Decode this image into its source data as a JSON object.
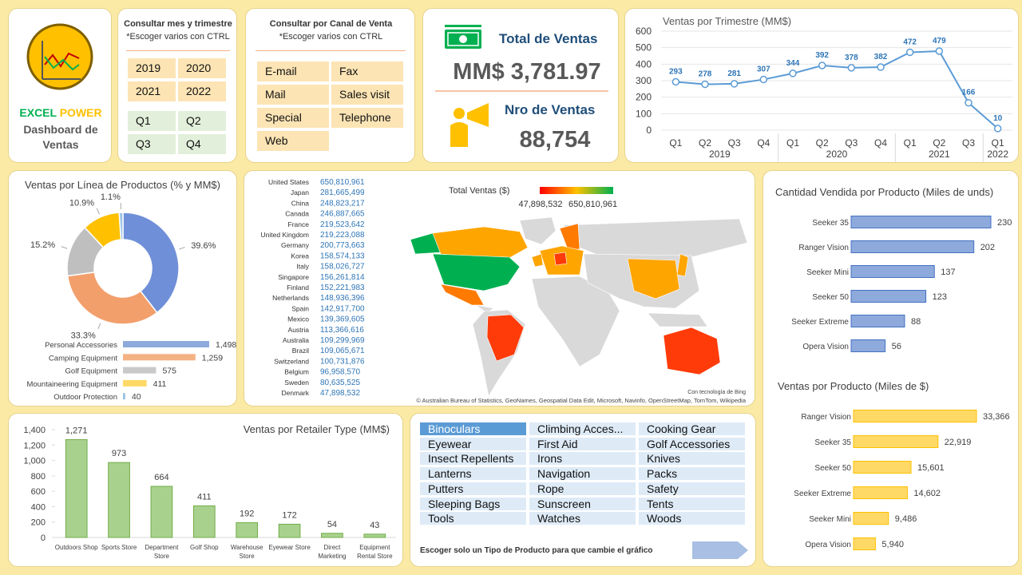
{
  "logo": {
    "brand_1": "EXCEL",
    "brand_2": "POWER",
    "title": "Dashboard de Ventas"
  },
  "period_slicer": {
    "title": "Consultar mes y trimestre",
    "subtitle": "*Escoger varios con CTRL",
    "years": [
      "2019",
      "2020",
      "2021",
      "2022"
    ],
    "quarters": [
      "Q1",
      "Q2",
      "Q3",
      "Q4"
    ]
  },
  "channel_slicer": {
    "title": "Consultar por Canal de Venta",
    "subtitle": "*Escoger varios con CTRL",
    "items": [
      "E-mail",
      "Fax",
      "Mail",
      "Sales visit",
      "Special",
      "Telephone",
      "Web"
    ]
  },
  "kpis": {
    "sales_label": "Total de Ventas",
    "sales_value": "MM$ 3,781.97",
    "count_label": "Nro de Ventas",
    "count_value": "88,754"
  },
  "map": {
    "title": "Total Ventas ($)",
    "legend_min": "47,898,532",
    "legend_max": "650,810,961",
    "credit": "Con tecnología de Bing",
    "attribution": "© Australian Bureau of Statistics, GeoNames, Geospatial Data Edit, Microsoft, Navinfo, OpenStreetMap, TomTom, Wikipedia",
    "rows": [
      [
        "United States",
        "650,810,961"
      ],
      [
        "Japan",
        "281,665,499"
      ],
      [
        "China",
        "248,823,217"
      ],
      [
        "Canada",
        "246,887,665"
      ],
      [
        "France",
        "219,523,642"
      ],
      [
        "United Kingdom",
        "219,223,088"
      ],
      [
        "Germany",
        "200,773,663"
      ],
      [
        "Korea",
        "158,574,133"
      ],
      [
        "Italy",
        "158,026,727"
      ],
      [
        "Singapore",
        "156,261,814"
      ],
      [
        "Finland",
        "152,221,983"
      ],
      [
        "Netherlands",
        "148,936,396"
      ],
      [
        "Spain",
        "142,917,700"
      ],
      [
        "Mexico",
        "139,369,605"
      ],
      [
        "Austria",
        "113,366,616"
      ],
      [
        "Australia",
        "109,299,969"
      ],
      [
        "Brazil",
        "109,065,671"
      ],
      [
        "Switzerland",
        "100,731,876"
      ],
      [
        "Belgium",
        "96,958,570"
      ],
      [
        "Sweden",
        "80,635,525"
      ],
      [
        "Denmark",
        "47,898,532"
      ]
    ]
  },
  "product_slicer": {
    "items": [
      "Binoculars",
      "Climbing Acces...",
      "Cooking Gear",
      "Eyewear",
      "First Aid",
      "Golf Accessories",
      "Insect Repellents",
      "Irons",
      "Knives",
      "Lanterns",
      "Navigation",
      "Packs",
      "Putters",
      "Rope",
      "Safety",
      "Sleeping Bags",
      "Sunscreen",
      "Tents",
      "Tools",
      "Watches",
      "Woods"
    ],
    "selected": 0,
    "note": "Escoger solo un Tipo de Producto para que cambie el gráfico"
  },
  "chart_data": [
    {
      "type": "line",
      "title": "Ventas por Trimestre (MM$)",
      "color": "#5b9bd5",
      "grid": true,
      "groups": [
        {
          "label": "2019",
          "categories": [
            "Q1",
            "Q2",
            "Q3",
            "Q4"
          ],
          "values": [
            293,
            278,
            281,
            307
          ]
        },
        {
          "label": "2020",
          "categories": [
            "Q1",
            "Q2",
            "Q3",
            "Q4"
          ],
          "values": [
            344,
            392,
            378,
            382
          ]
        },
        {
          "label": "2021",
          "categories": [
            "Q1",
            "Q2",
            "Q3"
          ],
          "values": [
            472,
            479,
            166
          ]
        },
        {
          "label": "2022",
          "categories": [
            "Q1"
          ],
          "values": [
            10
          ]
        }
      ],
      "ylim": [
        0,
        600
      ],
      "yticks": [
        0,
        100,
        200,
        300,
        400,
        500,
        600
      ]
    },
    {
      "type": "donut",
      "title": "Ventas por Línea de Productos (% y MM$)",
      "values": [
        39.6,
        33.3,
        15.2,
        10.9,
        1.1
      ],
      "value_labels": [
        "39.6%",
        "33.3%",
        "15.2%",
        "10.9%",
        "1.1%"
      ],
      "colors": [
        "#6f8fd8",
        "#f29f6c",
        "#bfbfbf",
        "#ffc000",
        "#9dc3e6"
      ]
    },
    {
      "type": "hbar",
      "categories": [
        "Personal Accessories",
        "Camping Equipment",
        "Golf Equipment",
        "Mountaineering Equipment",
        "Outdoor Protection"
      ],
      "values": [
        1498,
        1259,
        575,
        411,
        40
      ],
      "value_labels": [
        "1,498",
        "1,259",
        "575",
        "411",
        "40"
      ],
      "colors": [
        "#8ea9db",
        "#f4b183",
        "#c9c9c9",
        "#ffd966",
        "#9dc3e6"
      ]
    },
    {
      "type": "hbar",
      "title": "Cantidad Vendida por Producto (Miles de unds)",
      "categories": [
        "Seeker 35",
        "Ranger Vision",
        "Seeker Mini",
        "Seeker 50",
        "Seeker Extreme",
        "Opera Vision"
      ],
      "values": [
        230,
        202,
        137,
        123,
        88,
        56
      ],
      "color": "#8ea9db"
    },
    {
      "type": "hbar",
      "title": "Ventas por Producto (Miles de $)",
      "categories": [
        "Ranger Vision",
        "Seeker 35",
        "Seeker 50",
        "Seeker Extreme",
        "Seeker Mini",
        "Opera Vision"
      ],
      "values": [
        33366,
        22919,
        15601,
        14602,
        9486,
        5940
      ],
      "value_labels": [
        "33,366",
        "22,919",
        "15,601",
        "14,602",
        "9,486",
        "5,940"
      ],
      "color": "#ffd966"
    },
    {
      "type": "bar",
      "title": "Ventas por Retailer Type (MM$)",
      "categories": [
        "Outdoors Shop",
        "Sports Store",
        "Department Store",
        "Golf Shop",
        "Warehouse Store",
        "Eyewear Store",
        "Direct Marketing",
        "Equipment Rental Store"
      ],
      "values": [
        1271,
        973,
        664,
        411,
        192,
        172,
        54,
        43
      ],
      "value_labels": [
        "1,271",
        "973",
        "664",
        "411",
        "192",
        "172",
        "54",
        "43"
      ],
      "color": "#a9d18e",
      "ylim": [
        0,
        1400
      ],
      "yticks": [
        0,
        200,
        400,
        600,
        800,
        {
          "value": 1000,
          "label": "1,000"
        },
        {
          "value": 1200,
          "label": "1,200"
        },
        {
          "value": 1400,
          "label": "1,400"
        }
      ]
    }
  ]
}
